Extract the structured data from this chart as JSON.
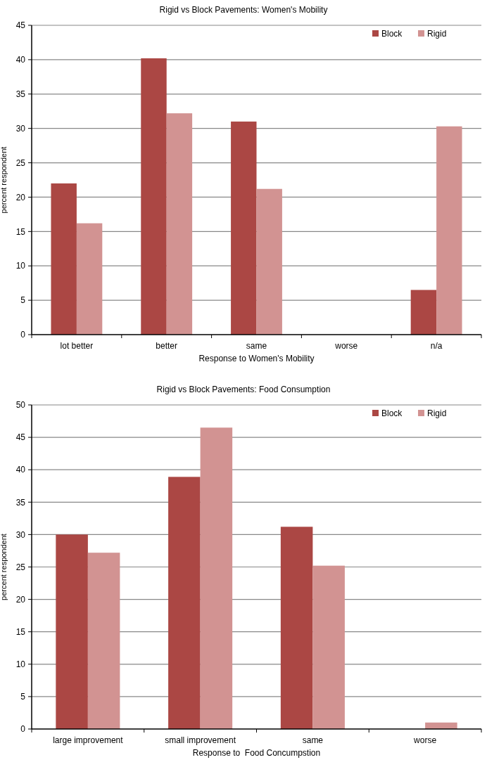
{
  "chart_data": [
    {
      "type": "bar",
      "title": "Rigid vs Block Pavements: Women's Mobility",
      "xlabel": "Response to Women's Mobility",
      "ylabel": "percent respondent",
      "categories": [
        "lot better",
        "better",
        "same",
        "worse",
        "n/a"
      ],
      "series": [
        {
          "name": "Block",
          "color": "#ab4744",
          "values": [
            22,
            40.2,
            31,
            0,
            6.5
          ]
        },
        {
          "name": "Rigid",
          "color": "#d29392",
          "values": [
            16.2,
            32.2,
            21.2,
            0,
            30.3
          ]
        }
      ],
      "ylim": [
        0,
        45
      ],
      "yticks": [
        0,
        5,
        10,
        15,
        20,
        25,
        30,
        35,
        40,
        45
      ],
      "grid": "y",
      "legend": "top right"
    },
    {
      "type": "bar",
      "title": "Rigid vs Block Pavements: Food Consumption",
      "xlabel": "Response to  Food Concumpstion",
      "ylabel": "percent respondent",
      "categories": [
        "large improvement",
        "small improvement",
        "same",
        "worse"
      ],
      "series": [
        {
          "name": "Block",
          "color": "#ab4744",
          "values": [
            30,
            38.9,
            31.2,
            0
          ]
        },
        {
          "name": "Rigid",
          "color": "#d29392",
          "values": [
            27.2,
            46.5,
            25.2,
            1
          ]
        }
      ],
      "ylim": [
        0,
        50
      ],
      "yticks": [
        0,
        5,
        10,
        15,
        20,
        25,
        30,
        35,
        40,
        45,
        50
      ],
      "grid": "y",
      "legend": "top right"
    }
  ]
}
